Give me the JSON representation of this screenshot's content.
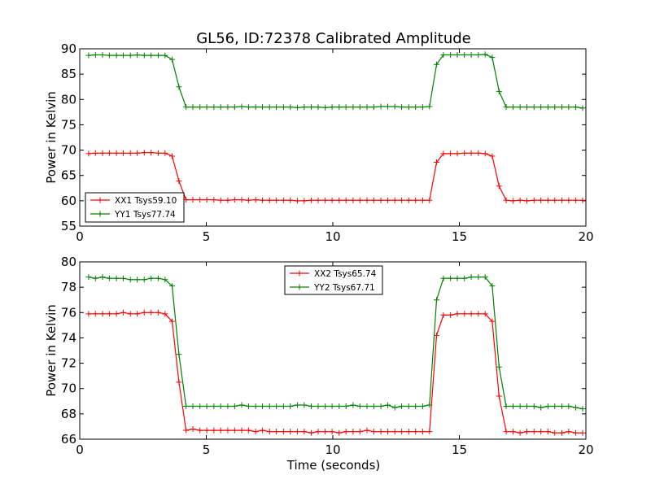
{
  "chart_data": [
    {
      "type": "line",
      "title": "GL56, ID:72378 Calibrated Amplitude",
      "xlabel": "",
      "ylabel": "Power in Kelvin",
      "xlim": [
        0,
        20
      ],
      "ylim": [
        55,
        90
      ],
      "xticks": [
        0,
        5,
        10,
        15,
        20
      ],
      "yticks": [
        55,
        60,
        65,
        70,
        75,
        80,
        85,
        90
      ],
      "grid": false,
      "legend_position": "lower-left",
      "x": [
        0.35,
        0.62,
        0.9,
        1.17,
        1.45,
        1.72,
        2.0,
        2.27,
        2.55,
        2.82,
        3.1,
        3.37,
        3.65,
        3.92,
        4.2,
        4.47,
        4.75,
        5.02,
        5.3,
        5.57,
        5.85,
        6.12,
        6.4,
        6.67,
        6.95,
        7.22,
        7.5,
        7.77,
        8.05,
        8.32,
        8.6,
        8.87,
        9.15,
        9.42,
        9.7,
        9.97,
        10.25,
        10.52,
        10.8,
        11.07,
        11.35,
        11.62,
        11.9,
        12.17,
        12.45,
        12.72,
        13.0,
        13.27,
        13.55,
        13.82,
        14.1,
        14.37,
        14.65,
        14.92,
        15.2,
        15.47,
        15.75,
        16.02,
        16.3,
        16.57,
        16.85,
        17.12,
        17.4,
        17.67,
        17.95,
        18.22,
        18.5,
        18.77,
        19.05,
        19.32,
        19.6,
        19.87
      ],
      "series": [
        {
          "name": "XX1 Tsys59.10",
          "color": "#ff0000",
          "values": [
            69.3,
            69.4,
            69.4,
            69.4,
            69.4,
            69.4,
            69.4,
            69.4,
            69.5,
            69.5,
            69.4,
            69.4,
            68.8,
            63.9,
            60.2,
            60.2,
            60.2,
            60.2,
            60.2,
            60.1,
            60.1,
            60.2,
            60.2,
            60.1,
            60.2,
            60.1,
            60.1,
            60.1,
            60.1,
            60.1,
            60.0,
            60.0,
            60.1,
            60.1,
            60.1,
            60.1,
            60.1,
            60.1,
            60.1,
            60.1,
            60.1,
            60.1,
            60.1,
            60.1,
            60.1,
            60.1,
            60.1,
            60.1,
            60.1,
            60.1,
            67.6,
            69.3,
            69.3,
            69.3,
            69.4,
            69.4,
            69.4,
            69.3,
            68.8,
            62.9,
            60.1,
            60.0,
            60.1,
            60.0,
            60.1,
            60.1,
            60.1,
            60.1,
            60.1,
            60.1,
            60.1,
            60.1
          ]
        },
        {
          "name": "YY1 Tsys77.74",
          "color": "#008000",
          "values": [
            88.7,
            88.8,
            88.8,
            88.7,
            88.7,
            88.7,
            88.7,
            88.8,
            88.7,
            88.7,
            88.7,
            88.7,
            87.9,
            82.5,
            78.5,
            78.5,
            78.5,
            78.5,
            78.5,
            78.5,
            78.5,
            78.5,
            78.6,
            78.5,
            78.5,
            78.5,
            78.5,
            78.5,
            78.5,
            78.5,
            78.4,
            78.5,
            78.5,
            78.5,
            78.4,
            78.5,
            78.5,
            78.5,
            78.5,
            78.5,
            78.5,
            78.5,
            78.6,
            78.6,
            78.6,
            78.5,
            78.5,
            78.5,
            78.5,
            78.6,
            86.9,
            88.8,
            88.8,
            88.8,
            88.8,
            88.8,
            88.8,
            88.9,
            88.3,
            81.6,
            78.5,
            78.5,
            78.5,
            78.5,
            78.5,
            78.5,
            78.5,
            78.5,
            78.5,
            78.5,
            78.5,
            78.3
          ]
        }
      ]
    },
    {
      "type": "line",
      "title": "",
      "xlabel": "Time (seconds)",
      "ylabel": "Power in Kelvin",
      "xlim": [
        0,
        20
      ],
      "ylim": [
        66,
        80
      ],
      "xticks": [
        0,
        5,
        10,
        15,
        20
      ],
      "yticks": [
        66,
        68,
        70,
        72,
        74,
        76,
        78,
        80
      ],
      "grid": false,
      "legend_position": "upper-center",
      "x": [
        0.35,
        0.62,
        0.9,
        1.17,
        1.45,
        1.72,
        2.0,
        2.27,
        2.55,
        2.82,
        3.1,
        3.37,
        3.65,
        3.92,
        4.2,
        4.47,
        4.75,
        5.02,
        5.3,
        5.57,
        5.85,
        6.12,
        6.4,
        6.67,
        6.95,
        7.22,
        7.5,
        7.77,
        8.05,
        8.32,
        8.6,
        8.87,
        9.15,
        9.42,
        9.7,
        9.97,
        10.25,
        10.52,
        10.8,
        11.07,
        11.35,
        11.62,
        11.9,
        12.17,
        12.45,
        12.72,
        13.0,
        13.27,
        13.55,
        13.82,
        14.1,
        14.37,
        14.65,
        14.92,
        15.2,
        15.47,
        15.75,
        16.02,
        16.3,
        16.57,
        16.85,
        17.12,
        17.4,
        17.67,
        17.95,
        18.22,
        18.5,
        18.77,
        19.05,
        19.32,
        19.6,
        19.87
      ],
      "series": [
        {
          "name": "XX2 Tsys65.74",
          "color": "#ff0000",
          "values": [
            75.9,
            75.9,
            75.9,
            75.9,
            75.9,
            76.0,
            75.9,
            75.9,
            76.0,
            76.0,
            76.0,
            75.9,
            75.3,
            70.5,
            66.7,
            66.8,
            66.7,
            66.7,
            66.7,
            66.7,
            66.7,
            66.7,
            66.7,
            66.7,
            66.6,
            66.7,
            66.6,
            66.6,
            66.6,
            66.6,
            66.6,
            66.6,
            66.5,
            66.6,
            66.6,
            66.6,
            66.5,
            66.6,
            66.6,
            66.6,
            66.7,
            66.6,
            66.6,
            66.6,
            66.6,
            66.6,
            66.6,
            66.6,
            66.6,
            66.6,
            74.2,
            75.8,
            75.8,
            75.9,
            75.9,
            75.9,
            75.9,
            75.9,
            75.3,
            69.4,
            66.6,
            66.6,
            66.5,
            66.6,
            66.6,
            66.6,
            66.6,
            66.5,
            66.5,
            66.6,
            66.5,
            66.5
          ]
        },
        {
          "name": "YY2 Tsys67.71",
          "color": "#008000",
          "values": [
            78.8,
            78.7,
            78.8,
            78.7,
            78.7,
            78.7,
            78.6,
            78.6,
            78.6,
            78.7,
            78.7,
            78.6,
            78.1,
            72.7,
            68.6,
            68.6,
            68.6,
            68.6,
            68.6,
            68.6,
            68.6,
            68.6,
            68.7,
            68.6,
            68.6,
            68.6,
            68.6,
            68.6,
            68.6,
            68.6,
            68.7,
            68.7,
            68.6,
            68.6,
            68.6,
            68.6,
            68.6,
            68.6,
            68.7,
            68.6,
            68.6,
            68.6,
            68.6,
            68.7,
            68.5,
            68.6,
            68.6,
            68.6,
            68.6,
            68.7,
            77.0,
            78.7,
            78.7,
            78.7,
            78.7,
            78.8,
            78.8,
            78.8,
            78.1,
            71.7,
            68.6,
            68.6,
            68.6,
            68.6,
            68.6,
            68.5,
            68.6,
            68.6,
            68.6,
            68.6,
            68.5,
            68.4
          ]
        }
      ]
    }
  ]
}
